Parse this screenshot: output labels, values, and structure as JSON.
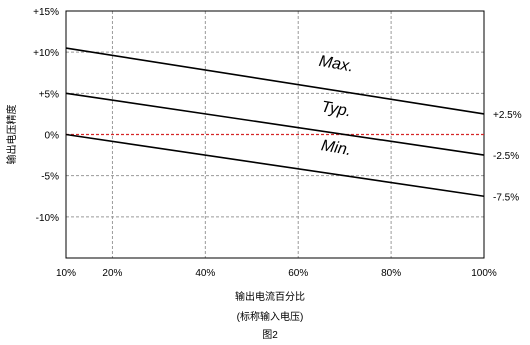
{
  "chart_data": {
    "type": "line",
    "title": "",
    "xlabel": "输出电流百分比",
    "xlabel_sub": "(标称输入电压)",
    "ylabel": "输出电压精度",
    "caption": "图2",
    "xlim": [
      10,
      100
    ],
    "ylim": [
      -15,
      15
    ],
    "x_ticks": [
      {
        "v": 10,
        "label": "10%"
      },
      {
        "v": 20,
        "label": "20%"
      },
      {
        "v": 40,
        "label": "40%"
      },
      {
        "v": 60,
        "label": "60%"
      },
      {
        "v": 80,
        "label": "80%"
      },
      {
        "v": 100,
        "label": "100%"
      }
    ],
    "y_ticks": [
      {
        "v": 15,
        "label": "+15%"
      },
      {
        "v": 10,
        "label": "+10%"
      },
      {
        "v": 5,
        "label": "+5%"
      },
      {
        "v": 0,
        "label": "0%"
      },
      {
        "v": -5,
        "label": "-5%"
      },
      {
        "v": -10,
        "label": "-10%"
      }
    ],
    "grid": true,
    "series": [
      {
        "name": "Max.",
        "x": [
          10,
          100
        ],
        "y": [
          10.5,
          2.5
        ],
        "end_label": "+2.5%",
        "color": "#000000"
      },
      {
        "name": "Typ.",
        "x": [
          10,
          100
        ],
        "y": [
          5.0,
          -2.5
        ],
        "end_label": "-2.5%",
        "color": "#000000"
      },
      {
        "name": "Min.",
        "x": [
          10,
          100
        ],
        "y": [
          0.0,
          -7.5
        ],
        "end_label": "-7.5%",
        "color": "#000000"
      }
    ],
    "reference_line": {
      "y": 0,
      "color": "#d62728",
      "style": "dashed"
    }
  }
}
